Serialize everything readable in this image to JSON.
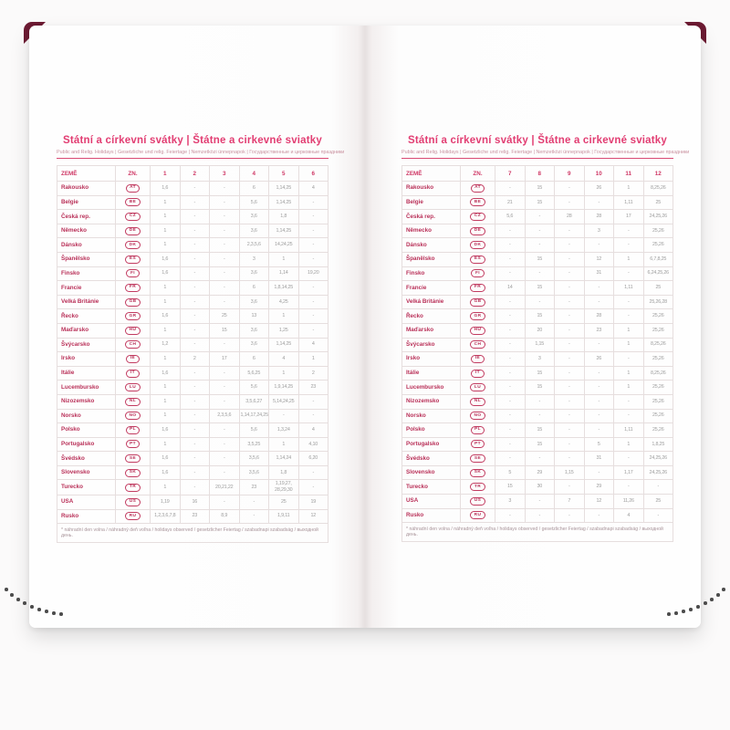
{
  "page_left": {
    "title": "Státní a církevní svátky | Štátne a cirkevné sviatky",
    "subtitle": "Public and Relig. Holidays | Gesetzliche und relig. Feiertage | Nemzetközi ünnepnapok | Государственные и церковные праздники",
    "columns": [
      "ZEMĚ",
      "ZN.",
      "1",
      "2",
      "3",
      "4",
      "5",
      "6"
    ],
    "rows": [
      {
        "country": "Rakousko",
        "code": "AT",
        "values": [
          "1,6",
          "-",
          "-",
          "6",
          "1,14,25",
          "4"
        ]
      },
      {
        "country": "Belgie",
        "code": "BE",
        "values": [
          "1",
          "-",
          "-",
          "5,6",
          "1,14,25",
          "-"
        ]
      },
      {
        "country": "Česká rep.",
        "code": "CZ",
        "values": [
          "1",
          "-",
          "-",
          "3,6",
          "1,8",
          "-"
        ]
      },
      {
        "country": "Německo",
        "code": "DE",
        "values": [
          "1",
          "-",
          "-",
          "3,6",
          "1,14,25",
          "-"
        ]
      },
      {
        "country": "Dánsko",
        "code": "DK",
        "values": [
          "1",
          "-",
          "-",
          "2,3,5,6",
          "14,24,25",
          "-"
        ]
      },
      {
        "country": "Španělsko",
        "code": "ES",
        "values": [
          "1,6",
          "-",
          "-",
          "3",
          "1",
          "-"
        ]
      },
      {
        "country": "Finsko",
        "code": "FI",
        "values": [
          "1,6",
          "-",
          "-",
          "3,6",
          "1,14",
          "19,20"
        ]
      },
      {
        "country": "Francie",
        "code": "FR",
        "values": [
          "1",
          "-",
          "-",
          "6",
          "1,8,14,25",
          "-"
        ]
      },
      {
        "country": "Velká Británie",
        "code": "GB",
        "values": [
          "1",
          "-",
          "-",
          "3,6",
          "4,25",
          "-"
        ]
      },
      {
        "country": "Řecko",
        "code": "GR",
        "values": [
          "1,6",
          "-",
          "25",
          "13",
          "1",
          "-"
        ]
      },
      {
        "country": "Maďarsko",
        "code": "HU",
        "values": [
          "1",
          "-",
          "15",
          "3,6",
          "1,25",
          "-"
        ]
      },
      {
        "country": "Švýcarsko",
        "code": "CH",
        "values": [
          "1,2",
          "-",
          "-",
          "3,6",
          "1,14,25",
          "4"
        ]
      },
      {
        "country": "Irsko",
        "code": "IE",
        "values": [
          "1",
          "2",
          "17",
          "6",
          "4",
          "1"
        ]
      },
      {
        "country": "Itálie",
        "code": "IT",
        "values": [
          "1,6",
          "-",
          "-",
          "5,6,25",
          "1",
          "2"
        ]
      },
      {
        "country": "Lucembursko",
        "code": "LU",
        "values": [
          "1",
          "-",
          "-",
          "5,6",
          "1,9,14,25",
          "23"
        ]
      },
      {
        "country": "Nizozemsko",
        "code": "NL",
        "values": [
          "1",
          "-",
          "-",
          "3,5,6,27",
          "5,14,24,25",
          "-"
        ]
      },
      {
        "country": "Norsko",
        "code": "NO",
        "values": [
          "1",
          "-",
          "2,3,5,6",
          "1,14,17,24,25",
          "-",
          "-"
        ]
      },
      {
        "country": "Polsko",
        "code": "PL",
        "values": [
          "1,6",
          "-",
          "-",
          "5,6",
          "1,3,24",
          "4"
        ]
      },
      {
        "country": "Portugalsko",
        "code": "PT",
        "values": [
          "1",
          "-",
          "-",
          "3,5,25",
          "1",
          "4,10"
        ]
      },
      {
        "country": "Švédsko",
        "code": "SE",
        "values": [
          "1,6",
          "-",
          "-",
          "3,5,6",
          "1,14,24",
          "6,20"
        ]
      },
      {
        "country": "Slovensko",
        "code": "SK",
        "values": [
          "1,6",
          "-",
          "-",
          "3,5,6",
          "1,8",
          "-"
        ]
      },
      {
        "country": "Turecko",
        "code": "TR",
        "values": [
          "1",
          "-",
          "20,21,22",
          "23",
          "1,19,27, 28,29,30",
          "-"
        ]
      },
      {
        "country": "USA",
        "code": "US",
        "values": [
          "1,19",
          "16",
          "-",
          "-",
          "25",
          "19"
        ]
      },
      {
        "country": "Rusko",
        "code": "RU",
        "values": [
          "1,2,3,6,7,8",
          "23",
          "8,9",
          "-",
          "1,9,11",
          "12"
        ]
      }
    ],
    "footnote": "* náhradní den volna / náhradný deň voľna / holidays observed / gesetzlicher Feiertag / szabadnapi szabadság / выходной день."
  },
  "page_right": {
    "title": "Státní a církevní svátky | Štátne a cirkevné sviatky",
    "subtitle": "Public and Relig. Holidays | Gesetzliche und relig. Feiertage | Nemzetközi ünnepnapok | Государственные и церковные праздники",
    "columns": [
      "ZEMĚ",
      "ZN.",
      "7",
      "8",
      "9",
      "10",
      "11",
      "12"
    ],
    "rows": [
      {
        "country": "Rakousko",
        "code": "AT",
        "values": [
          "-",
          "15",
          "-",
          "26",
          "1",
          "8,25,26"
        ]
      },
      {
        "country": "Belgie",
        "code": "BE",
        "values": [
          "21",
          "15",
          "-",
          "-",
          "1,11",
          "25"
        ]
      },
      {
        "country": "Česká rep.",
        "code": "CZ",
        "values": [
          "5,6",
          "-",
          "28",
          "28",
          "17",
          "24,25,26"
        ]
      },
      {
        "country": "Německo",
        "code": "DE",
        "values": [
          "-",
          "-",
          "-",
          "3",
          "-",
          "25,26"
        ]
      },
      {
        "country": "Dánsko",
        "code": "DK",
        "values": [
          "-",
          "-",
          "-",
          "-",
          "-",
          "25,26"
        ]
      },
      {
        "country": "Španělsko",
        "code": "ES",
        "values": [
          "-",
          "15",
          "-",
          "12",
          "1",
          "6,7,8,25"
        ]
      },
      {
        "country": "Finsko",
        "code": "FI",
        "values": [
          "-",
          "-",
          "-",
          "31",
          "-",
          "6,24,25,26"
        ]
      },
      {
        "country": "Francie",
        "code": "FR",
        "values": [
          "14",
          "15",
          "-",
          "-",
          "1,11",
          "25"
        ]
      },
      {
        "country": "Velká Británie",
        "code": "GB",
        "values": [
          "-",
          "-",
          "-",
          "-",
          "-",
          "25,26,28"
        ]
      },
      {
        "country": "Řecko",
        "code": "GR",
        "values": [
          "-",
          "15",
          "-",
          "28",
          "-",
          "25,26"
        ]
      },
      {
        "country": "Maďarsko",
        "code": "HU",
        "values": [
          "-",
          "20",
          "-",
          "23",
          "1",
          "25,26"
        ]
      },
      {
        "country": "Švýcarsko",
        "code": "CH",
        "values": [
          "-",
          "1,15",
          "-",
          "-",
          "1",
          "8,25,26"
        ]
      },
      {
        "country": "Irsko",
        "code": "IE",
        "values": [
          "-",
          "3",
          "-",
          "26",
          "-",
          "25,26"
        ]
      },
      {
        "country": "Itálie",
        "code": "IT",
        "values": [
          "-",
          "15",
          "-",
          "-",
          "1",
          "8,25,26"
        ]
      },
      {
        "country": "Lucembursko",
        "code": "LU",
        "values": [
          "-",
          "15",
          "-",
          "-",
          "1",
          "25,26"
        ]
      },
      {
        "country": "Nizozemsko",
        "code": "NL",
        "values": [
          "-",
          "-",
          "-",
          "-",
          "-",
          "25,26"
        ]
      },
      {
        "country": "Norsko",
        "code": "NO",
        "values": [
          "-",
          "-",
          "-",
          "-",
          "-",
          "25,26"
        ]
      },
      {
        "country": "Polsko",
        "code": "PL",
        "values": [
          "-",
          "15",
          "-",
          "-",
          "1,11",
          "25,26"
        ]
      },
      {
        "country": "Portugalsko",
        "code": "PT",
        "values": [
          "-",
          "15",
          "-",
          "5",
          "1",
          "1,8,25"
        ]
      },
      {
        "country": "Švédsko",
        "code": "SE",
        "values": [
          "-",
          "-",
          "-",
          "31",
          "-",
          "24,25,26"
        ]
      },
      {
        "country": "Slovensko",
        "code": "SK",
        "values": [
          "5",
          "29",
          "1,15",
          "-",
          "1,17",
          "24,25,26"
        ]
      },
      {
        "country": "Turecko",
        "code": "TR",
        "values": [
          "15",
          "30",
          "-",
          "29",
          "-",
          "-"
        ]
      },
      {
        "country": "USA",
        "code": "US",
        "values": [
          "3",
          "-",
          "7",
          "12",
          "11,26",
          "25"
        ]
      },
      {
        "country": "Rusko",
        "code": "RU",
        "values": [
          "-",
          "-",
          "-",
          "-",
          "4",
          "-"
        ]
      }
    ],
    "footnote": "* náhradní den volna / náhradný deň voľna / holidays observed / gesetzlicher Feiertag / szabadnapi szabadság / выходной день."
  }
}
